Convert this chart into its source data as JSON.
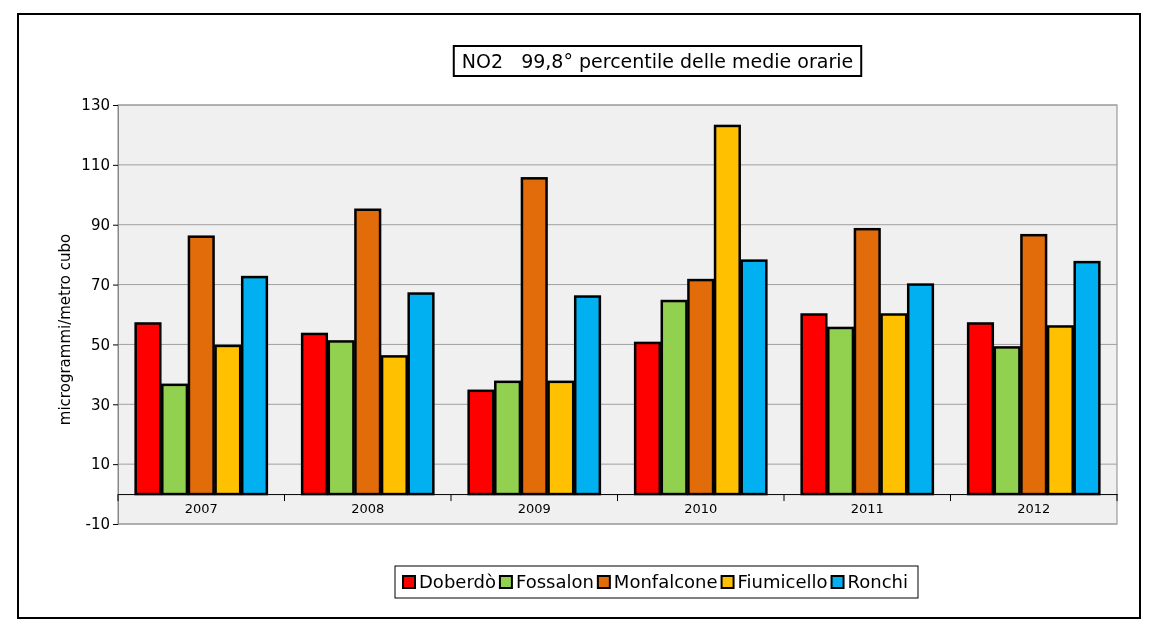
{
  "chart_data": {
    "type": "bar",
    "title": "NO2   99,8° percentile delle medie orarie",
    "ylabel": "microgrammi/metro cubo",
    "categories": [
      "2007",
      "2008",
      "2009",
      "2010",
      "2011",
      "2012"
    ],
    "series": [
      {
        "name": "Doberdò",
        "color": "#ff0000",
        "values": [
          57,
          53.5,
          34.5,
          50.5,
          60,
          57
        ]
      },
      {
        "name": "Fossalon",
        "color": "#92d050",
        "values": [
          36.5,
          51,
          37.5,
          64.5,
          55.5,
          49
        ]
      },
      {
        "name": "Monfalcone",
        "color": "#e36c0a",
        "values": [
          86,
          95,
          105.5,
          71.5,
          88.5,
          86.5
        ]
      },
      {
        "name": "Fiumicello",
        "color": "#ffc000",
        "values": [
          49.5,
          46,
          37.5,
          123,
          60,
          56
        ]
      },
      {
        "name": "Ronchi",
        "color": "#00b0f0",
        "values": [
          72.5,
          67,
          66,
          78,
          70,
          77.5
        ]
      }
    ],
    "ylim": [
      -10,
      130
    ],
    "yticks": [
      -10,
      10,
      30,
      50,
      70,
      90,
      110,
      130
    ],
    "grid": "y",
    "legend": "bottom"
  }
}
